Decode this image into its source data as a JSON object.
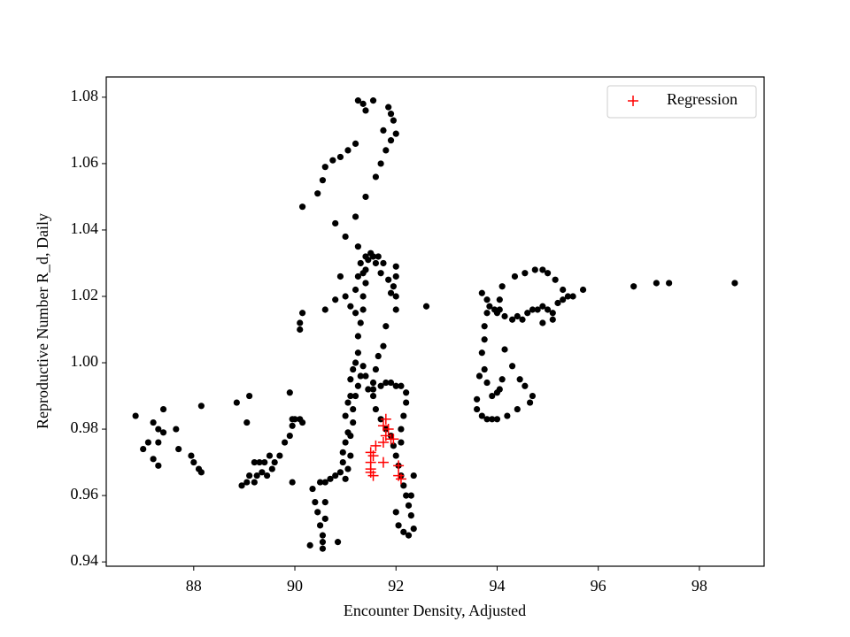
{
  "chart_data": {
    "type": "scatter",
    "xlabel": "Encounter Density, Adjusted",
    "ylabel": "Reproductive Number R_d, Daily",
    "xlim": [
      86.27,
      99.28
    ],
    "ylim": [
      0.9387,
      1.0861
    ],
    "xticks": [
      88,
      90,
      92,
      94,
      96,
      98
    ],
    "yticks": [
      0.94,
      0.96,
      0.98,
      {
        "value": 1,
        "label": "1.00"
      },
      1.02,
      1.04,
      1.06,
      1.08
    ],
    "legend": "upper right",
    "series": [
      {
        "color": "#000000",
        "marker": "o",
        "x": [
          86.85,
          87.2,
          87.4,
          87.3,
          87.1,
          87.3,
          87.4,
          87.0,
          87.2,
          87.3,
          87.7,
          87.65,
          87.95,
          88.0,
          88.1,
          88.15,
          88.15,
          88.85,
          89.1,
          89.05,
          88.95,
          89.05,
          89.1,
          89.2,
          89.2,
          89.3,
          89.4,
          89.35,
          89.25,
          89.45,
          89.55,
          89.6,
          89.5,
          89.7,
          89.8,
          89.9,
          89.95,
          89.95,
          90.0,
          90.1,
          90.15,
          89.9,
          89.95,
          90.1,
          90.1,
          90.15,
          90.15,
          90.3,
          90.35,
          90.4,
          90.45,
          90.5,
          90.55,
          90.55,
          90.55,
          90.5,
          90.6,
          90.7,
          90.8,
          90.85,
          90.6,
          90.6,
          90.9,
          90.95,
          90.95,
          91.0,
          91.05,
          91.0,
          91.05,
          91.1,
          91.1,
          91.15,
          91.2,
          91.25,
          91.25,
          91.3,
          91.35,
          91.35,
          91.4,
          91.4,
          91.45,
          91.55,
          91.6,
          91.7,
          91.85,
          91.95,
          92.0,
          92.0,
          91.8,
          91.75,
          91.65,
          91.6,
          91.55,
          91.55,
          91.6,
          91.7,
          91.8,
          91.9,
          91.95,
          92.0,
          92.05,
          92.1,
          92.15,
          92.2,
          92.25,
          92.3,
          92.35,
          92.25,
          92.15,
          92.05,
          92.0,
          92.3,
          92.35,
          91.0,
          91.05,
          91.1,
          91.1,
          91.15,
          91.15,
          91.2,
          91.25,
          91.3,
          91.35,
          91.4,
          91.45,
          91.55,
          91.7,
          91.8,
          91.9,
          92.0,
          92.1,
          92.2,
          92.2,
          92.15,
          92.1,
          92.1,
          90.6,
          90.8,
          91.0,
          91.1,
          91.2,
          91.2,
          91.25,
          91.3,
          91.35,
          91.4,
          91.5,
          91.65,
          91.75,
          92.0,
          92.0,
          91.9,
          90.9,
          91.25,
          90.8,
          91.0,
          91.2,
          91.4,
          91.6,
          91.7,
          91.8,
          91.9,
          92.0,
          91.95,
          91.9,
          91.85,
          91.75,
          91.55,
          91.35,
          91.25,
          91.4,
          91.2,
          91.05,
          90.9,
          90.75,
          90.6,
          90.55,
          90.45,
          92.6,
          93.6,
          93.6,
          93.7,
          93.8,
          93.9,
          94.0,
          93.65,
          93.75,
          93.8,
          93.9,
          94.0,
          94.05,
          94.1,
          93.7,
          93.75,
          93.75,
          93.8,
          93.85,
          93.95,
          94.05,
          94.15,
          94.3,
          94.4,
          94.5,
          94.6,
          94.7,
          94.8,
          94.9,
          95.0,
          95.1,
          95.2,
          95.3,
          95.5,
          95.7,
          95.4,
          95.3,
          95.15,
          95.0,
          94.9,
          94.75,
          94.55,
          94.35,
          94.1,
          94.05,
          94.0,
          93.7,
          93.8,
          94.15,
          94.3,
          94.45,
          94.55,
          94.7,
          94.65,
          94.4,
          94.2,
          96.7,
          97.15,
          97.4,
          98.7,
          95.1,
          94.9
        ],
        "values": [
          0.984,
          0.982,
          0.986,
          0.98,
          0.976,
          0.976,
          0.979,
          0.974,
          0.971,
          0.969,
          0.974,
          0.98,
          0.972,
          0.97,
          0.968,
          0.967,
          0.987,
          0.988,
          0.99,
          0.982,
          0.963,
          0.964,
          0.966,
          0.964,
          0.97,
          0.97,
          0.97,
          0.967,
          0.966,
          0.966,
          0.968,
          0.97,
          0.972,
          0.972,
          0.976,
          0.978,
          0.981,
          0.983,
          0.983,
          0.983,
          0.982,
          0.991,
          0.964,
          1.012,
          1.01,
          1.015,
          1.047,
          0.945,
          0.962,
          0.958,
          0.955,
          0.951,
          0.948,
          0.946,
          0.944,
          0.964,
          0.964,
          0.965,
          0.966,
          0.946,
          0.958,
          0.953,
          0.967,
          0.97,
          0.973,
          0.976,
          0.979,
          0.984,
          0.988,
          0.99,
          0.995,
          0.998,
          1,
          1.003,
          1.008,
          1.012,
          1.016,
          1.02,
          1.024,
          1.028,
          1.031,
          1.032,
          1.03,
          1.027,
          1.025,
          1.023,
          1.02,
          1.016,
          1.011,
          1.005,
          1.002,
          0.998,
          0.994,
          0.99,
          0.986,
          0.983,
          0.98,
          0.978,
          0.975,
          0.972,
          0.969,
          0.966,
          0.963,
          0.96,
          0.957,
          0.954,
          0.95,
          0.948,
          0.949,
          0.951,
          0.955,
          0.96,
          0.966,
          0.965,
          0.968,
          0.972,
          0.978,
          0.982,
          0.986,
          0.99,
          0.993,
          0.996,
          0.999,
          0.996,
          0.992,
          0.992,
          0.993,
          0.994,
          0.994,
          0.993,
          0.993,
          0.991,
          0.988,
          0.984,
          0.98,
          0.976,
          1.016,
          1.019,
          1.02,
          1.017,
          1.015,
          1.022,
          1.026,
          1.03,
          1.027,
          1.032,
          1.033,
          1.032,
          1.03,
          1.029,
          1.026,
          1.021,
          1.026,
          1.035,
          1.042,
          1.038,
          1.044,
          1.05,
          1.056,
          1.06,
          1.064,
          1.067,
          1.069,
          1.073,
          1.075,
          1.077,
          1.07,
          1.079,
          1.078,
          1.079,
          1.076,
          1.066,
          1.064,
          1.062,
          1.061,
          1.059,
          1.055,
          1.051,
          1.017,
          0.989,
          0.986,
          0.984,
          0.983,
          0.983,
          0.983,
          0.996,
          0.998,
          0.994,
          0.99,
          0.991,
          0.992,
          0.995,
          1.003,
          1.007,
          1.011,
          1.015,
          1.017,
          1.016,
          1.016,
          1.014,
          1.013,
          1.014,
          1.013,
          1.015,
          1.016,
          1.016,
          1.017,
          1.016,
          1.015,
          1.018,
          1.019,
          1.02,
          1.022,
          1.02,
          1.022,
          1.025,
          1.027,
          1.028,
          1.028,
          1.027,
          1.026,
          1.023,
          1.019,
          1.015,
          1.021,
          1.019,
          1.004,
          0.999,
          0.995,
          0.993,
          0.99,
          0.988,
          0.986,
          0.984,
          1.023,
          1.024,
          1.024,
          1.024,
          1.013,
          1.012
        ]
      },
      {
        "name": "Regression",
        "color": "#ff0000",
        "marker": "+",
        "x": [
          91.8,
          91.75,
          91.85,
          91.8,
          91.75,
          91.9,
          91.6,
          91.5,
          91.5,
          91.5,
          91.5,
          91.55,
          91.75,
          92.05,
          92.05,
          92.1,
          91.95,
          91.55
        ],
        "values": [
          0.983,
          0.981,
          0.98,
          0.978,
          0.976,
          0.977,
          0.975,
          0.973,
          0.97,
          0.968,
          0.967,
          0.966,
          0.97,
          0.969,
          0.966,
          0.965,
          0.977,
          0.972
        ]
      }
    ]
  }
}
